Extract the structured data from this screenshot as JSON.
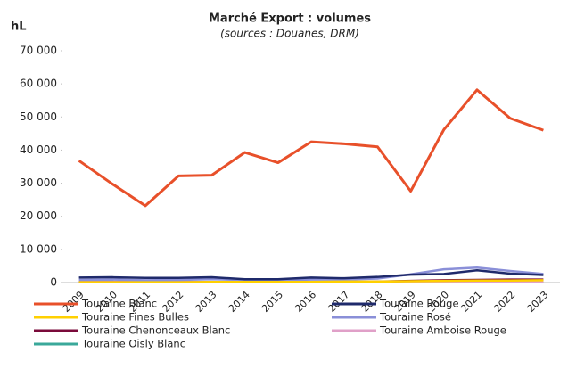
{
  "chart_data": {
    "type": "line",
    "title": "Marché Export : volumes",
    "subtitle": "(sources : Douanes, DRM)",
    "y_label": "hL",
    "categories": [
      "2009",
      "2010",
      "2011",
      "2012",
      "2013",
      "2014",
      "2015",
      "2016",
      "2017",
      "2018",
      "2019",
      "2020",
      "2021",
      "2022",
      "2023"
    ],
    "ylim": [
      0,
      70000
    ],
    "yticks": [
      0,
      {
        "value": 10000,
        "label": "10 000"
      },
      {
        "value": 20000,
        "label": "20 000"
      },
      {
        "value": 30000,
        "label": "30 000"
      },
      {
        "value": 40000,
        "label": "40 000"
      },
      {
        "value": 50000,
        "label": "50 000"
      },
      {
        "value": 60000,
        "label": "60 000"
      },
      {
        "value": 70000,
        "label": "70 000"
      }
    ],
    "grid": false,
    "series": [
      {
        "name": "Touraine Blanc",
        "color": "#e8502a",
        "values": [
          36800,
          29800,
          23200,
          32200,
          32400,
          39300,
          36200,
          42500,
          41900,
          41000,
          27600,
          46200,
          58200,
          49600,
          46000
        ]
      },
      {
        "name": "Touraine Rouge",
        "color": "#1f2a6b",
        "values": [
          1500,
          1600,
          1400,
          1400,
          1600,
          1000,
          1000,
          1500,
          1300,
          1700,
          2400,
          2600,
          3700,
          2700,
          2300
        ]
      },
      {
        "name": "Touraine Fines Bulles",
        "color": "#ffd000",
        "values": [
          100,
          100,
          100,
          100,
          200,
          200,
          200,
          200,
          300,
          300,
          400,
          500,
          600,
          600,
          700
        ]
      },
      {
        "name": "Touraine Rosé",
        "color": "#8a8fd8",
        "values": [
          800,
          900,
          700,
          800,
          1000,
          800,
          700,
          900,
          900,
          1200,
          2500,
          4000,
          4500,
          3500,
          2600
        ]
      },
      {
        "name": "Touraine Chenonceaux Blanc",
        "color": "#7a0a3a",
        "values": [
          100,
          100,
          100,
          100,
          100,
          100,
          100,
          200,
          200,
          300,
          500,
          700,
          800,
          900,
          900
        ]
      },
      {
        "name": "Touraine Amboise Rouge",
        "color": "#e0a0c8",
        "values": [
          200,
          200,
          200,
          200,
          200,
          200,
          200,
          200,
          200,
          200,
          200,
          200,
          200,
          200,
          200
        ]
      },
      {
        "name": "Touraine Oisly Blanc",
        "color": "#3aa89a",
        "values": [
          100,
          100,
          100,
          100,
          100,
          100,
          100,
          100,
          100,
          100,
          100,
          100,
          100,
          100,
          100
        ]
      }
    ]
  }
}
